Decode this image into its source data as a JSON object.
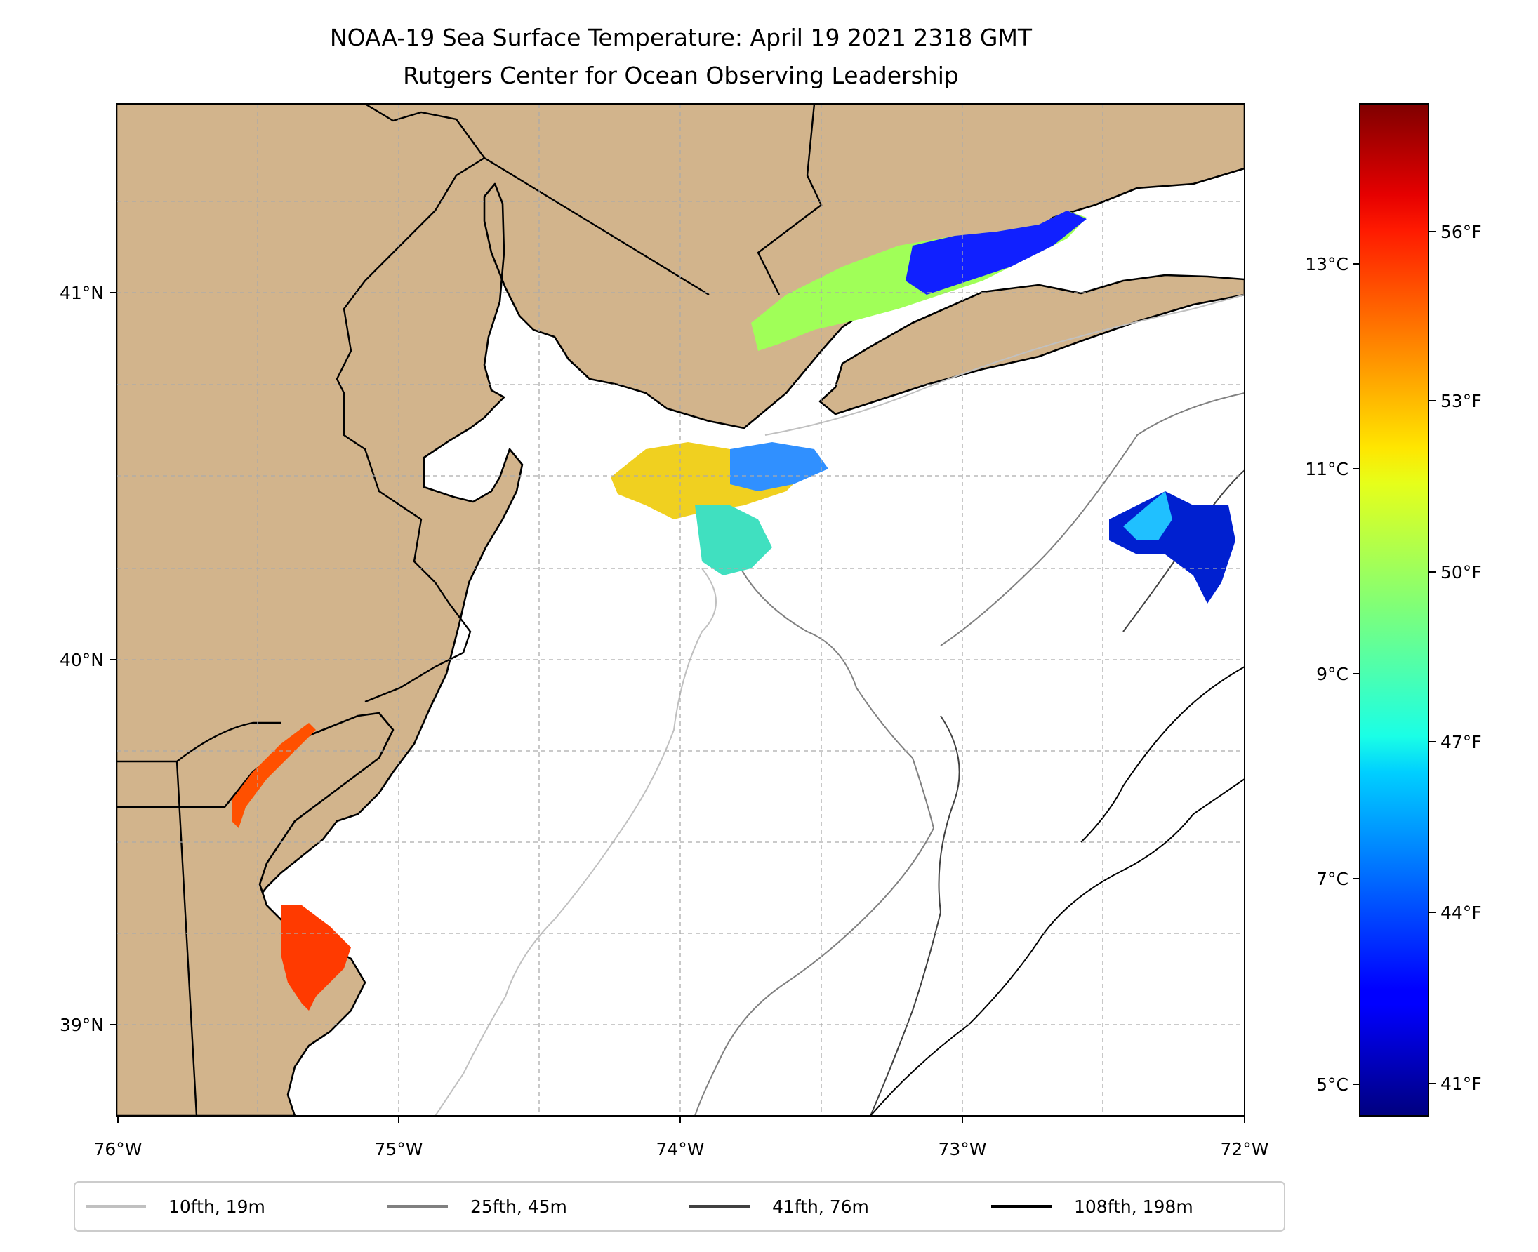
{
  "title_line1": "NOAA-19 Sea Surface Temperature: April 19 2021 2318 GMT",
  "title_line2": "Rutgers Center for Ocean Observing Leadership",
  "axes": {
    "lon_ticks": [
      "76°W",
      "75°W",
      "74°W",
      "73°W",
      "72°W"
    ],
    "lat_ticks": [
      "41°N",
      "40°N",
      "39°N"
    ]
  },
  "colorbar": {
    "celsius_ticks": [
      "13°C",
      "11°C",
      "9°C",
      "7°C",
      "5°C"
    ],
    "fahrenheit_ticks": [
      "56°F",
      "53°F",
      "50°F",
      "47°F",
      "44°F",
      "41°F"
    ],
    "range_c": [
      4.7,
      14.6
    ],
    "colormap": "jet"
  },
  "legend": {
    "entries": [
      {
        "label": "10fth, 19m",
        "color": "#c0c0c0"
      },
      {
        "label": "25fth, 45m",
        "color": "#808080"
      },
      {
        "label": "41fth, 76m",
        "color": "#404040"
      },
      {
        "label": "108fth, 198m",
        "color": "#000000"
      }
    ]
  },
  "colors": {
    "land": "#d2b48c",
    "water": "#ffffff",
    "grid": "#aaaaaa"
  }
}
